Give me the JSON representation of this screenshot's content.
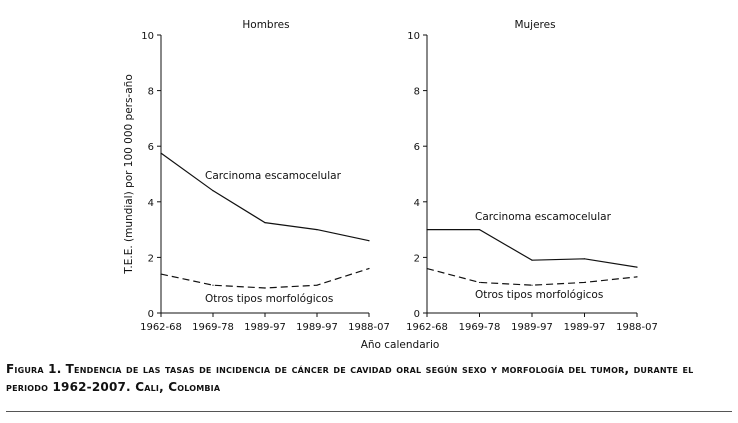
{
  "chart_data": [
    {
      "type": "line",
      "title": "Hombres",
      "categories": [
        "1962-68",
        "1969-78",
        "1989-97",
        "1989-97",
        "1988-07"
      ],
      "ylabel": "T.E.E. (mundial) por 100 000 pers-año",
      "xlabel": "Año calendario",
      "ylim": [
        0,
        10
      ],
      "yticks": [
        0,
        2,
        4,
        6,
        8,
        10
      ],
      "grid": false,
      "series": [
        {
          "name": "Carcinoma escamocelular",
          "style": "solid",
          "values": [
            5.75,
            4.4,
            3.25,
            3.0,
            2.6
          ]
        },
        {
          "name": "Otros tipos morfológicos",
          "style": "dashed",
          "values": [
            1.4,
            1.0,
            0.9,
            1.0,
            1.6
          ]
        }
      ]
    },
    {
      "type": "line",
      "title": "Mujeres",
      "categories": [
        "1962-68",
        "1969-78",
        "1989-97",
        "1989-97",
        "1988-07"
      ],
      "ylim": [
        0,
        10
      ],
      "yticks": [
        0,
        2,
        4,
        6,
        8,
        10
      ],
      "grid": false,
      "series": [
        {
          "name": "Carcinoma escamocelular",
          "style": "solid",
          "values": [
            3.0,
            3.0,
            1.9,
            1.95,
            1.65
          ]
        },
        {
          "name": "Otros tipos morfológicos",
          "style": "dashed",
          "values": [
            1.6,
            1.1,
            1.0,
            1.1,
            1.3
          ]
        }
      ]
    }
  ],
  "caption": {
    "lead": "Figura 1.",
    "text": "Tendencia de las tasas de incidencia de cáncer de cavidad oral según sexo y morfología del tumor, durante el periodo 1962-2007. Cali, Colombia"
  }
}
